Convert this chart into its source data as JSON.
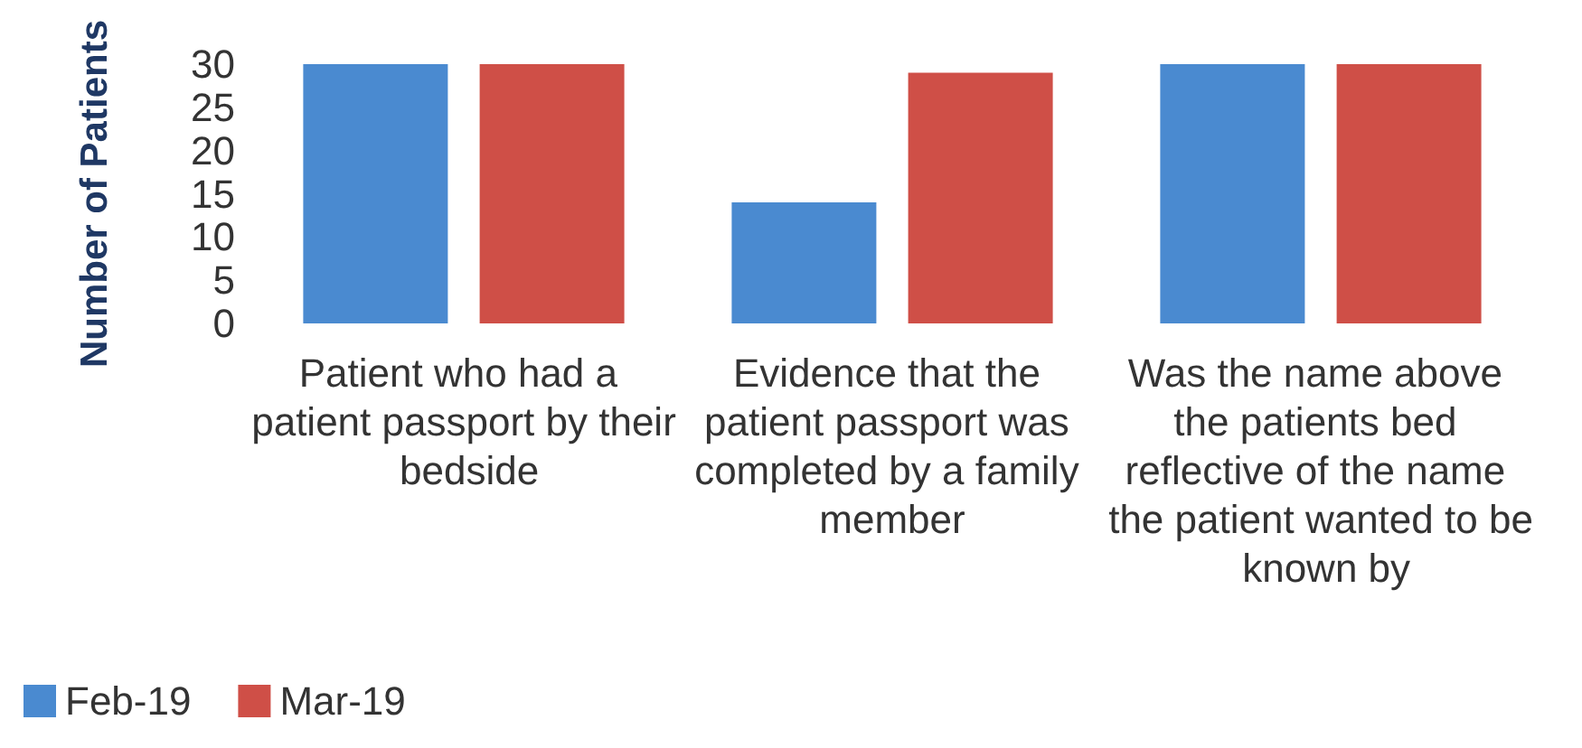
{
  "chart_data": {
    "type": "bar",
    "ylabel": "Number of Patients",
    "categories": [
      "Patient who had a patient passport by their bedside",
      "Evidence that the patient passport was completed by a family member",
      "Was the name above the patients bed reflective of the name the patient wanted to be known by"
    ],
    "series": [
      {
        "name": "Feb-19",
        "color": "#4a8ad0",
        "values": [
          30,
          14,
          30
        ]
      },
      {
        "name": "Mar-19",
        "color": "#cf4f47",
        "values": [
          30,
          29,
          30
        ]
      }
    ],
    "ylim": [
      0,
      30
    ],
    "yticks": [
      0,
      5,
      10,
      15,
      20,
      25,
      30
    ],
    "grid": false,
    "legend": "bottom left"
  }
}
